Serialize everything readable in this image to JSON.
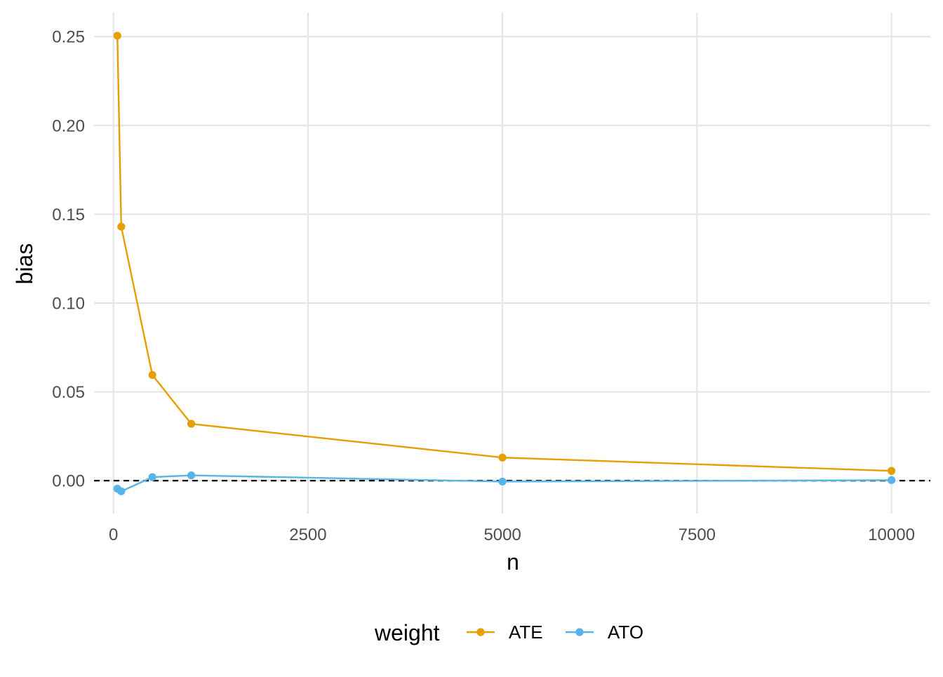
{
  "chart_data": {
    "type": "line",
    "xlabel": "n",
    "ylabel": "bias",
    "xlim": [
      -250,
      10500
    ],
    "ylim": [
      -0.0185,
      0.2635
    ],
    "x_ticks": [
      0,
      2500,
      5000,
      7500,
      10000
    ],
    "x_tick_labels": [
      "0",
      "2500",
      "5000",
      "7500",
      "10000"
    ],
    "y_ticks": [
      0.0,
      0.05,
      0.1,
      0.15,
      0.2,
      0.25
    ],
    "y_tick_labels": [
      "0.00",
      "0.05",
      "0.10",
      "0.15",
      "0.20",
      "0.25"
    ],
    "grid": true,
    "reference_line": {
      "y": 0,
      "style": "dashed",
      "color": "#000000"
    },
    "legend": {
      "title": "weight",
      "position": "bottom"
    },
    "series": [
      {
        "name": "ATE",
        "color": "#E69F00",
        "x": [
          50,
          100,
          500,
          1000,
          5000,
          10000
        ],
        "y": [
          0.2505,
          0.143,
          0.0595,
          0.032,
          0.013,
          0.0055
        ]
      },
      {
        "name": "ATO",
        "color": "#56B4E9",
        "x": [
          50,
          100,
          500,
          1000,
          5000,
          10000
        ],
        "y": [
          -0.0045,
          -0.006,
          0.002,
          0.003,
          -0.0005,
          0.0003
        ]
      }
    ]
  }
}
